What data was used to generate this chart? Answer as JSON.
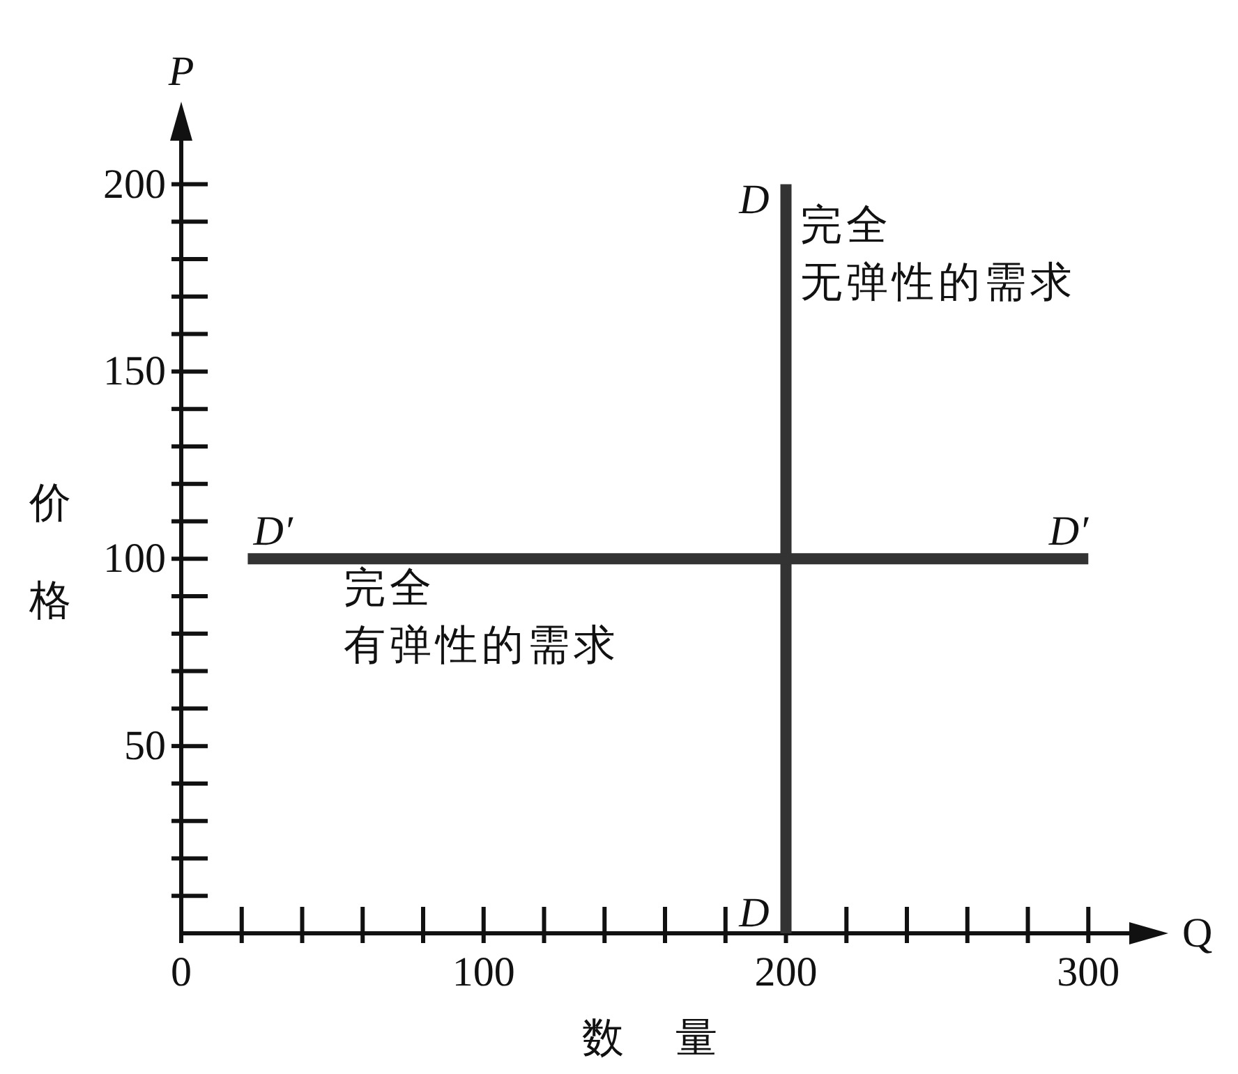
{
  "chart_data": {
    "type": "line",
    "xlabel": "数量",
    "ylabel": "价格",
    "series": [
      {
        "name": "D",
        "color": "#333333",
        "x": [
          200,
          200
        ],
        "values": [
          0,
          200
        ]
      },
      {
        "name": "D′",
        "color": "#333333",
        "x": [
          22,
          300
        ],
        "values": [
          100,
          100
        ]
      }
    ],
    "xlim": [
      0,
      314
    ],
    "ylim": [
      0,
      212
    ],
    "xticks": [
      0,
      {
        "value": 20,
        "label": null
      },
      {
        "value": 40,
        "label": null
      },
      {
        "value": 60,
        "label": null
      },
      {
        "value": 80,
        "label": null
      },
      100,
      {
        "value": 120,
        "label": null
      },
      {
        "value": 140,
        "label": null
      },
      {
        "value": 160,
        "label": null
      },
      {
        "value": 180,
        "label": null
      },
      200,
      {
        "value": 220,
        "label": null
      },
      {
        "value": 240,
        "label": null
      },
      {
        "value": 260,
        "label": null
      },
      {
        "value": 280,
        "label": null
      },
      300
    ],
    "yticks": [
      {
        "value": 10,
        "label": null
      },
      {
        "value": 20,
        "label": null
      },
      {
        "value": 30,
        "label": null
      },
      {
        "value": 40,
        "label": null
      },
      50,
      {
        "value": 60,
        "label": null
      },
      {
        "value": 70,
        "label": null
      },
      {
        "value": 80,
        "label": null
      },
      {
        "value": 90,
        "label": null
      },
      100,
      {
        "value": 110,
        "label": null
      },
      {
        "value": 120,
        "label": null
      },
      {
        "value": 130,
        "label": null
      },
      {
        "value": 140,
        "label": null
      },
      150,
      {
        "value": 160,
        "label": null
      },
      {
        "value": 170,
        "label": null
      },
      {
        "value": 180,
        "label": null
      },
      {
        "value": 190,
        "label": null
      },
      200
    ],
    "annotations": [
      "P",
      "Q",
      {
        "text": "完全无弹性的需求",
        "x": 200,
        "y": 197
      },
      {
        "text": "完全有弹性的需求",
        "x": 49,
        "y": 100
      }
    ],
    "marker": "none",
    "line_style": "solid"
  }
}
